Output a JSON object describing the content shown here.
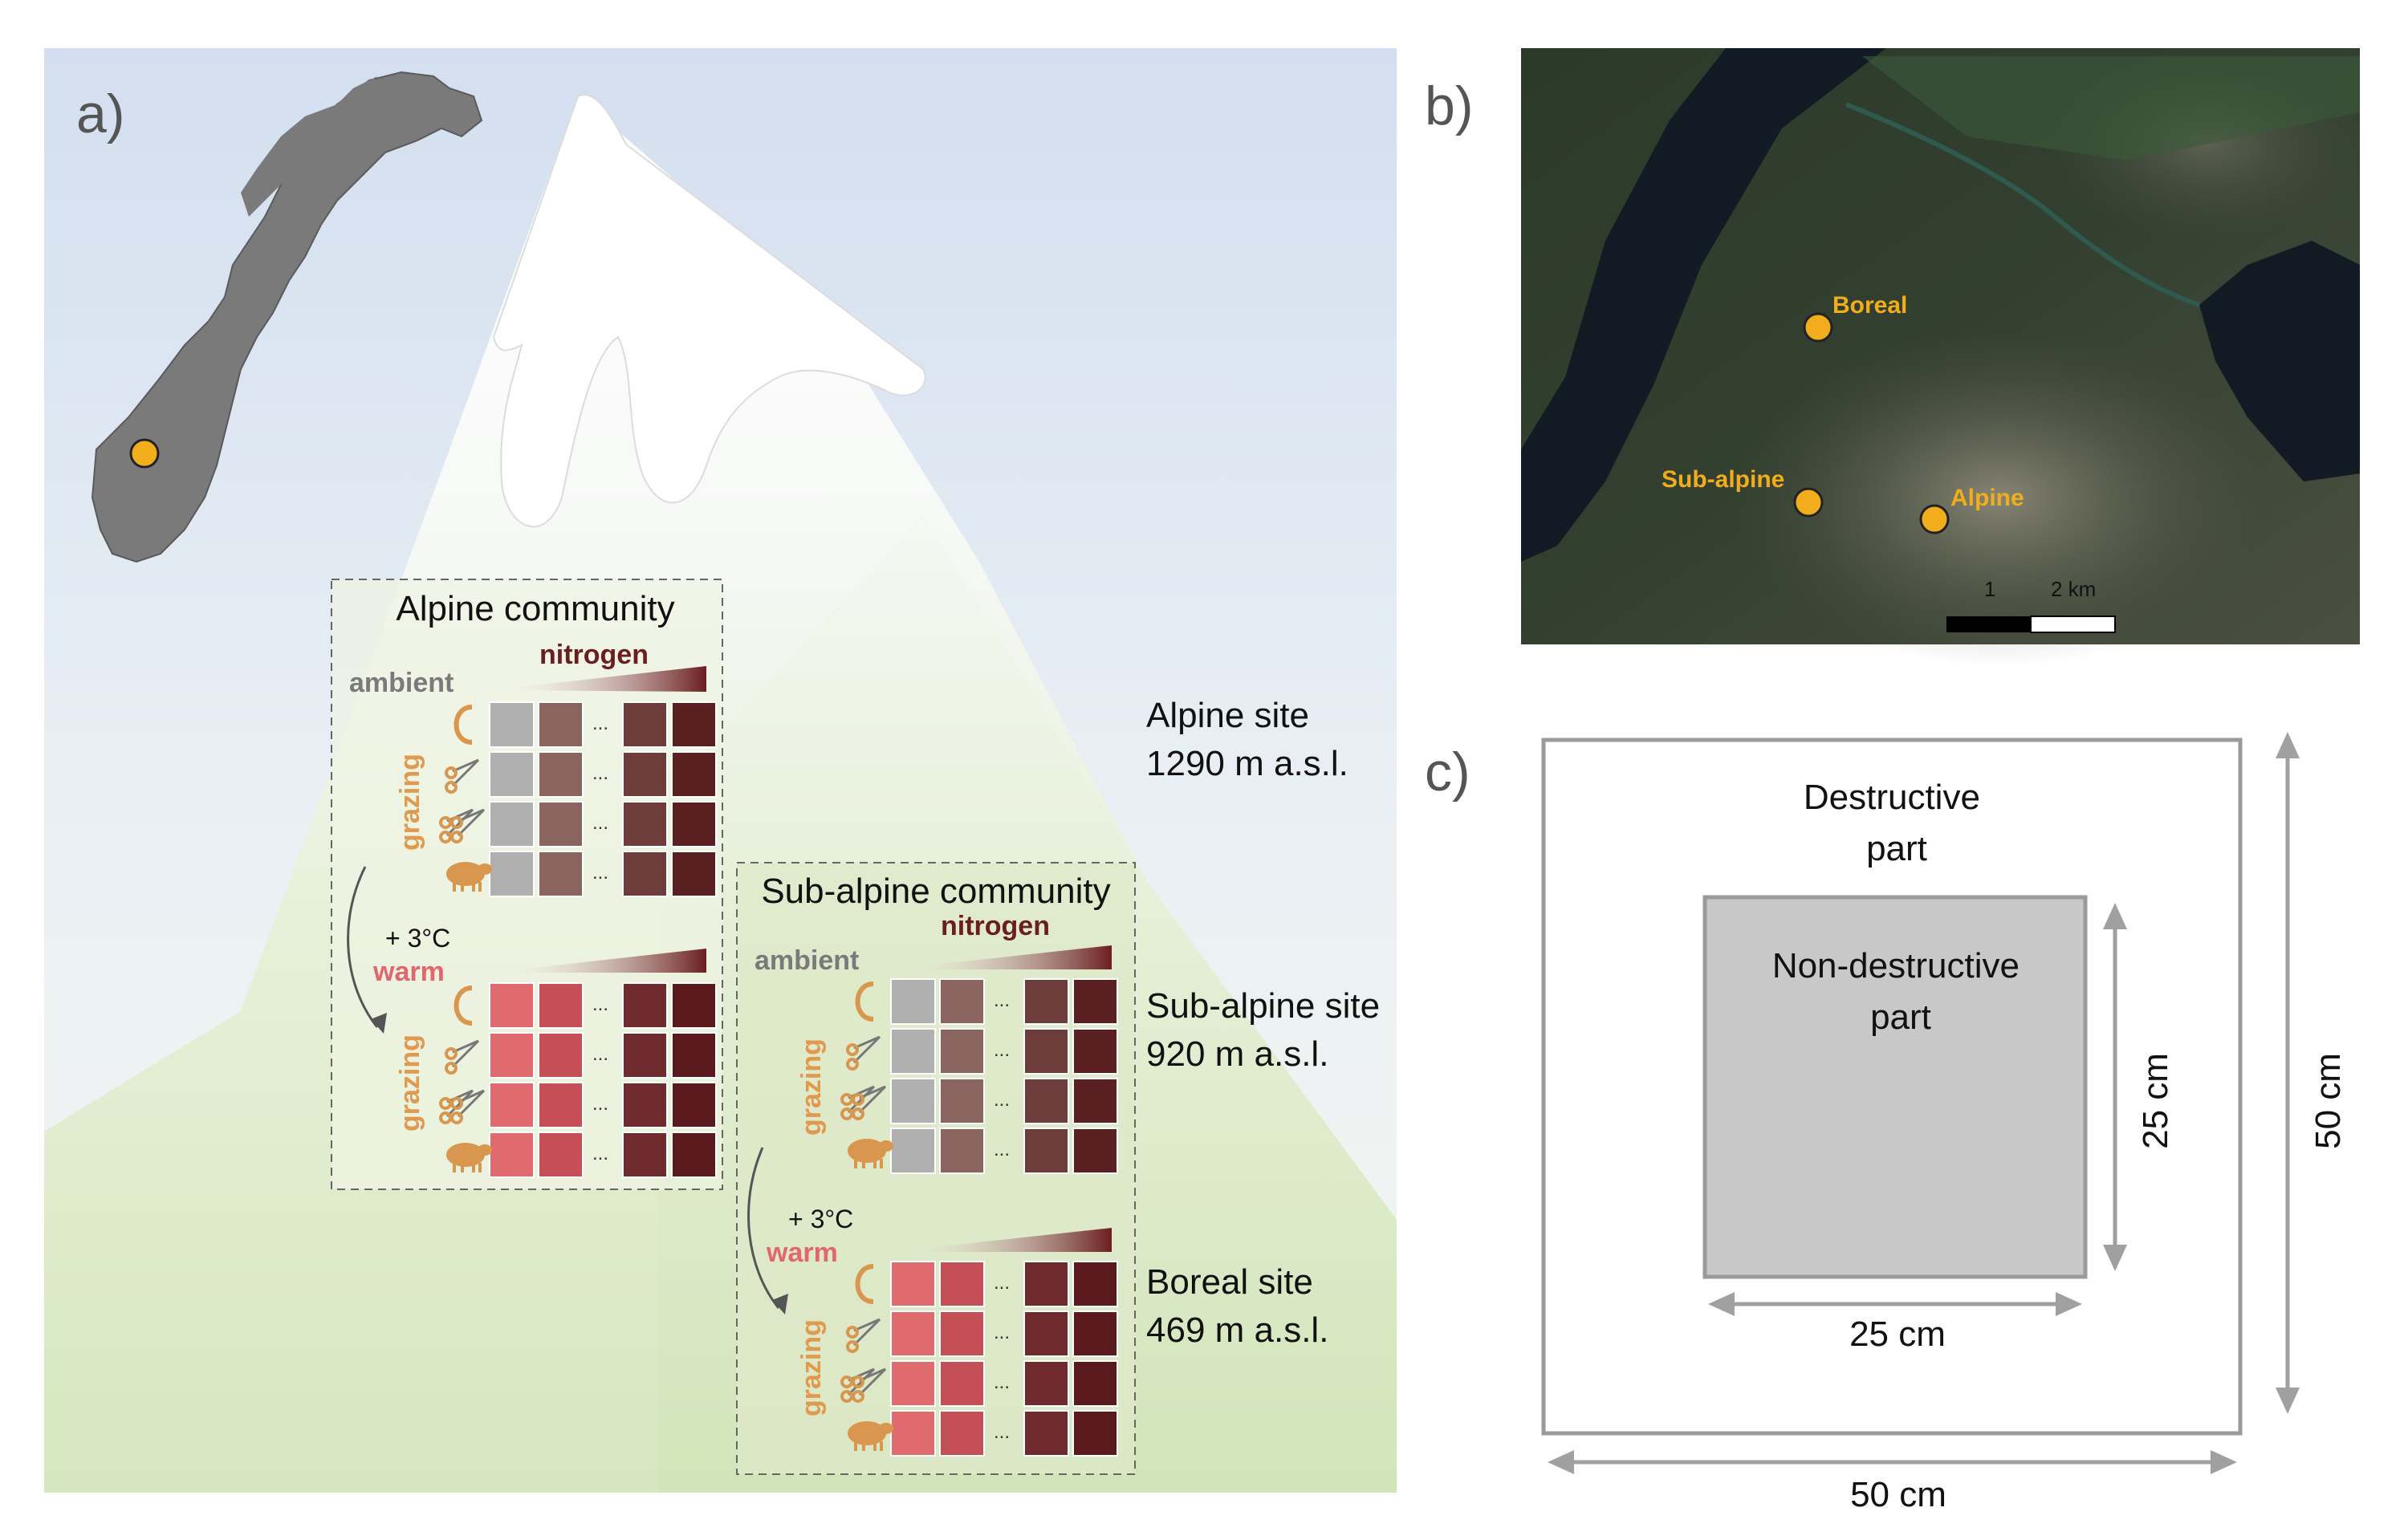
{
  "panel_a": {
    "label": "a)",
    "site_point_color": "#f2ad1c",
    "alpine_community": {
      "title": "Alpine community",
      "ambient_label": "ambient",
      "nitrogen_label": "nitrogen",
      "grazing_label_top": "grazing",
      "grazing_label_bottom": "grazing",
      "warming_label": "+ 3°C",
      "warm_label": "warm"
    },
    "subalpine_community": {
      "title": "Sub-alpine community",
      "ambient_label": "ambient",
      "nitrogen_label": "nitrogen",
      "grazing_label_top": "grazing",
      "grazing_label_bottom": "grazing",
      "warming_label": "+ 3°C",
      "warm_label": "warm"
    },
    "ellipsis": "...",
    "grazing_treatments": [
      "control-icon",
      "scissors-icon",
      "double-scissors-icon",
      "sheep-icon"
    ],
    "sites": [
      {
        "name": "Alpine site",
        "elevation": "1290 m a.s.l."
      },
      {
        "name": "Sub-alpine site",
        "elevation": "920 m a.s.l."
      },
      {
        "name": "Boreal site",
        "elevation": "469 m a.s.l."
      }
    ],
    "colors": {
      "ambient_cells": [
        "#b0b0b0",
        "#8a6560",
        "#6e3c3b",
        "#5a1f20"
      ],
      "warm_cells": [
        "#e06b6f",
        "#c44f57",
        "#6e2a2c",
        "#5a1a1d"
      ],
      "grazing_label": "#e09a4f",
      "ambient_label": "#7a7a7a",
      "nitrogen_label": "#6b1e20",
      "warm_label": "#e0676b"
    }
  },
  "panel_b": {
    "label": "b)",
    "markers": [
      {
        "name": "Boreal"
      },
      {
        "name": "Sub-alpine"
      },
      {
        "name": "Alpine"
      }
    ],
    "scale_labels": [
      "1",
      "2 km"
    ],
    "marker_color": "#f2ad1c"
  },
  "panel_c": {
    "label": "c)",
    "outer_label": "Destructive part",
    "inner_label": "Non-destructive part",
    "inner_width": "25 cm",
    "inner_height": "25 cm",
    "outer_width": "50 cm",
    "outer_height": "50 cm"
  }
}
